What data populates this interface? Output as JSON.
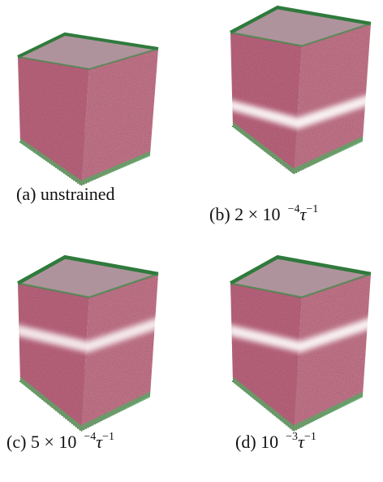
{
  "panels": [
    {
      "label": "(a) unstrained"
    },
    {
      "label": "(b) 2 × 10",
      "exponent": "−4",
      "unit": "τ",
      "unit_exponent": "−1"
    },
    {
      "label": "(c) 5 × 10",
      "exponent": "−4",
      "unit": "τ",
      "unit_exponent": "−1"
    },
    {
      "label": "(d) 10",
      "exponent": "−3",
      "unit": "τ",
      "unit_exponent": "−1"
    }
  ]
}
